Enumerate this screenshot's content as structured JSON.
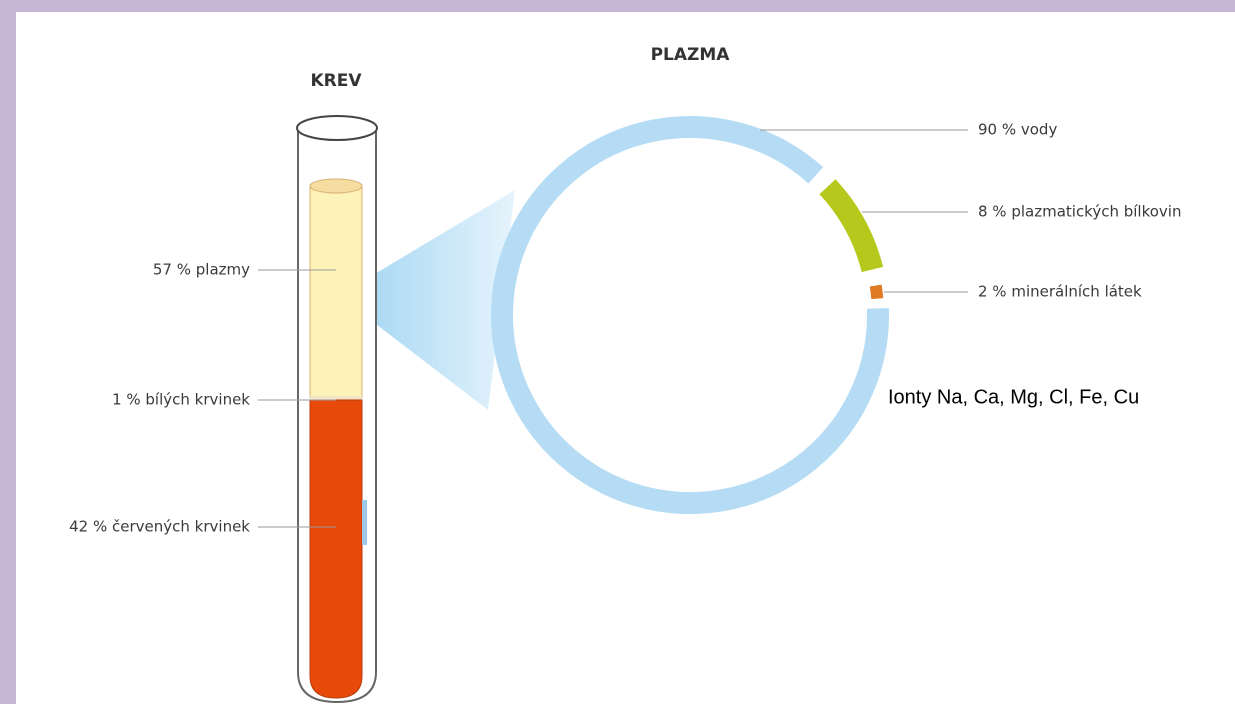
{
  "headings": {
    "blood": "KREV",
    "plasma": "PLAZMA"
  },
  "tube_labels": [
    "57 % plazmy",
    "1 % bílých krvinek",
    "42 % červených krvinek"
  ],
  "ring_labels": [
    "90 % vody",
    "8 % plazmatických bílkovin",
    "2 % minerálních látek"
  ],
  "note": "Ionty Na, Ca, Mg, Cl, Fe, Cu"
}
